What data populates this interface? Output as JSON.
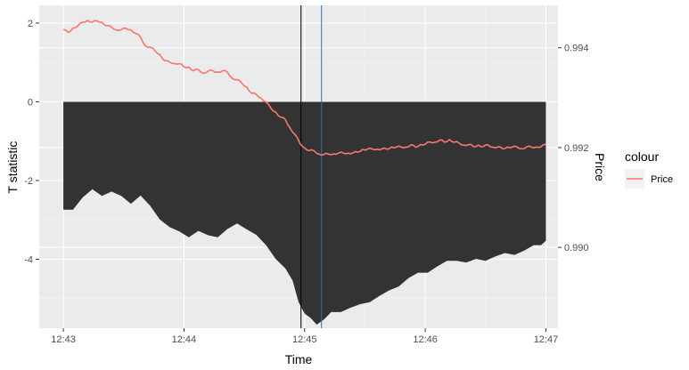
{
  "chart_data": {
    "type": "area",
    "xlabel": "Time",
    "ylabel_left": "T statistic",
    "ylabel_right": "Price",
    "x_ticks": [
      "12:43",
      "12:44",
      "12:45",
      "12:46",
      "12:47"
    ],
    "x_range_minutes": [
      0,
      4
    ],
    "x_lim_minutes": [
      -0.2,
      4.1
    ],
    "y_left_ticks": [
      2,
      0,
      -2,
      -4
    ],
    "y_left_lim": [
      -5.75,
      2.45
    ],
    "y_right_ticks": [
      "0.994",
      "0.992",
      "0.990"
    ],
    "y_right_lim": [
      0.98838,
      0.99485
    ],
    "grid": true,
    "legend": {
      "title": "colour",
      "position": "right",
      "entries": [
        "Price"
      ]
    },
    "colors": {
      "panel": "#ebebeb",
      "grid_major": "#ffffff",
      "area_fill": "#333333",
      "price_line": "#f8766d",
      "black_vline": "#000000",
      "blue_vline": "#1f78b4"
    },
    "vlines_minutes": [
      {
        "name": "black",
        "x": 1.97
      },
      {
        "name": "blue",
        "x": 2.14
      }
    ],
    "tstat_area": {
      "upper": 0,
      "lower": [
        [
          0.0,
          -2.8
        ],
        [
          0.08,
          -2.7
        ],
        [
          0.16,
          -2.45
        ],
        [
          0.24,
          -2.28
        ],
        [
          0.32,
          -2.35
        ],
        [
          0.4,
          -2.3
        ],
        [
          0.48,
          -2.45
        ],
        [
          0.56,
          -2.55
        ],
        [
          0.64,
          -2.4
        ],
        [
          0.72,
          -2.7
        ],
        [
          0.8,
          -2.95
        ],
        [
          0.88,
          -3.2
        ],
        [
          0.96,
          -3.35
        ],
        [
          1.04,
          -3.4
        ],
        [
          1.12,
          -3.3
        ],
        [
          1.2,
          -3.45
        ],
        [
          1.28,
          -3.4
        ],
        [
          1.36,
          -3.25
        ],
        [
          1.44,
          -3.15
        ],
        [
          1.52,
          -3.2
        ],
        [
          1.6,
          -3.4
        ],
        [
          1.68,
          -3.7
        ],
        [
          1.76,
          -3.95
        ],
        [
          1.84,
          -4.25
        ],
        [
          1.9,
          -4.6
        ],
        [
          1.95,
          -5.05
        ],
        [
          2.0,
          -5.4
        ],
        [
          2.05,
          -5.55
        ],
        [
          2.1,
          -5.62
        ],
        [
          2.16,
          -5.55
        ],
        [
          2.22,
          -5.4
        ],
        [
          2.3,
          -5.3
        ],
        [
          2.38,
          -5.25
        ],
        [
          2.46,
          -5.2
        ],
        [
          2.54,
          -5.05
        ],
        [
          2.62,
          -4.95
        ],
        [
          2.7,
          -4.85
        ],
        [
          2.78,
          -4.65
        ],
        [
          2.86,
          -4.5
        ],
        [
          2.94,
          -4.4
        ],
        [
          3.02,
          -4.3
        ],
        [
          3.1,
          -4.2
        ],
        [
          3.18,
          -4.1
        ],
        [
          3.26,
          -4.0
        ],
        [
          3.34,
          -4.1
        ],
        [
          3.42,
          -4.05
        ],
        [
          3.5,
          -4.0
        ],
        [
          3.58,
          -3.95
        ],
        [
          3.66,
          -3.9
        ],
        [
          3.74,
          -3.85
        ],
        [
          3.82,
          -3.8
        ],
        [
          3.9,
          -3.7
        ],
        [
          3.96,
          -3.6
        ],
        [
          4.0,
          -3.55
        ]
      ]
    },
    "series": [
      {
        "name": "Price",
        "points": [
          [
            0.0,
            0.99435
          ],
          [
            0.04,
            0.99432
          ],
          [
            0.08,
            0.99438
          ],
          [
            0.12,
            0.99445
          ],
          [
            0.16,
            0.9945
          ],
          [
            0.2,
            0.99456
          ],
          [
            0.24,
            0.9945
          ],
          [
            0.28,
            0.99455
          ],
          [
            0.32,
            0.9945
          ],
          [
            0.36,
            0.99445
          ],
          [
            0.4,
            0.9944
          ],
          [
            0.44,
            0.99437
          ],
          [
            0.48,
            0.99435
          ],
          [
            0.52,
            0.9944
          ],
          [
            0.56,
            0.99435
          ],
          [
            0.6,
            0.9943
          ],
          [
            0.64,
            0.9942
          ],
          [
            0.68,
            0.99405
          ],
          [
            0.72,
            0.994
          ],
          [
            0.76,
            0.99395
          ],
          [
            0.8,
            0.99385
          ],
          [
            0.84,
            0.99375
          ],
          [
            0.88,
            0.9937
          ],
          [
            0.92,
            0.9937
          ],
          [
            0.96,
            0.99367
          ],
          [
            1.0,
            0.99363
          ],
          [
            1.04,
            0.9936
          ],
          [
            1.08,
            0.99355
          ],
          [
            1.12,
            0.99355
          ],
          [
            1.16,
            0.9935
          ],
          [
            1.2,
            0.99352
          ],
          [
            1.24,
            0.99355
          ],
          [
            1.28,
            0.9935
          ],
          [
            1.32,
            0.99355
          ],
          [
            1.36,
            0.9935
          ],
          [
            1.4,
            0.9934
          ],
          [
            1.44,
            0.99335
          ],
          [
            1.48,
            0.9933
          ],
          [
            1.52,
            0.9932
          ],
          [
            1.56,
            0.9931
          ],
          [
            1.6,
            0.99305
          ],
          [
            1.64,
            0.993
          ],
          [
            1.68,
            0.9929
          ],
          [
            1.72,
            0.9928
          ],
          [
            1.76,
            0.9927
          ],
          [
            1.8,
            0.99262
          ],
          [
            1.84,
            0.99255
          ],
          [
            1.88,
            0.9924
          ],
          [
            1.92,
            0.99225
          ],
          [
            1.96,
            0.9921
          ],
          [
            2.0,
            0.99198
          ],
          [
            2.04,
            0.99195
          ],
          [
            2.08,
            0.99192
          ],
          [
            2.12,
            0.99188
          ],
          [
            2.16,
            0.99185
          ],
          [
            2.2,
            0.99188
          ],
          [
            2.24,
            0.99186
          ],
          [
            2.28,
            0.9919
          ],
          [
            2.32,
            0.99188
          ],
          [
            2.36,
            0.9919
          ],
          [
            2.4,
            0.99188
          ],
          [
            2.44,
            0.99192
          ],
          [
            2.48,
            0.99195
          ],
          [
            2.52,
            0.99198
          ],
          [
            2.56,
            0.99196
          ],
          [
            2.6,
            0.99198
          ],
          [
            2.64,
            0.99196
          ],
          [
            2.68,
            0.99198
          ],
          [
            2.72,
            0.992
          ],
          [
            2.76,
            0.99202
          ],
          [
            2.8,
            0.992
          ],
          [
            2.84,
            0.99202
          ],
          [
            2.88,
            0.99204
          ],
          [
            2.92,
            0.99202
          ],
          [
            2.96,
            0.99205
          ],
          [
            3.0,
            0.99208
          ],
          [
            3.04,
            0.9921
          ],
          [
            3.08,
            0.99212
          ],
          [
            3.12,
            0.99214
          ],
          [
            3.16,
            0.99212
          ],
          [
            3.2,
            0.99215
          ],
          [
            3.24,
            0.99212
          ],
          [
            3.28,
            0.99208
          ],
          [
            3.32,
            0.99206
          ],
          [
            3.36,
            0.99205
          ],
          [
            3.4,
            0.99203
          ],
          [
            3.44,
            0.99204
          ],
          [
            3.48,
            0.99203
          ],
          [
            3.52,
            0.99204
          ],
          [
            3.56,
            0.99202
          ],
          [
            3.6,
            0.992
          ],
          [
            3.64,
            0.99199
          ],
          [
            3.68,
            0.992
          ],
          [
            3.72,
            0.99202
          ],
          [
            3.76,
            0.992
          ],
          [
            3.8,
            0.99199
          ],
          [
            3.84,
            0.992
          ],
          [
            3.88,
            0.99202
          ],
          [
            3.92,
            0.992
          ],
          [
            3.96,
            0.99203
          ],
          [
            4.0,
            0.99205
          ]
        ]
      }
    ]
  }
}
